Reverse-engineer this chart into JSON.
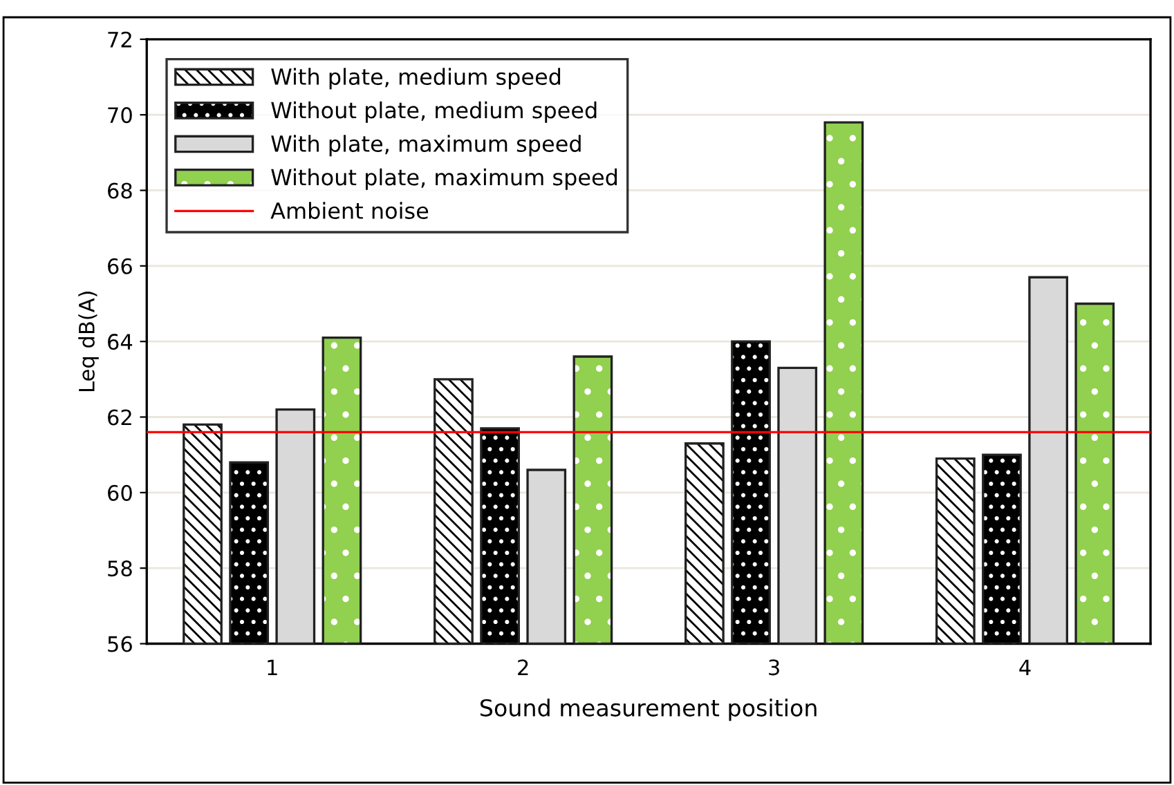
{
  "chart_data": {
    "type": "bar",
    "xlabel": "Sound measurement position",
    "ylabel": "Leq dB(A)",
    "categories": [
      "1",
      "2",
      "3",
      "4"
    ],
    "series": [
      {
        "name": "With plate, medium speed",
        "color": "#ffffff",
        "values": [
          61.8,
          63.0,
          61.3,
          60.9
        ]
      },
      {
        "name": "Without plate, medium speed",
        "color": "#000000",
        "values": [
          60.8,
          61.7,
          64.0,
          61.0
        ]
      },
      {
        "name": "With plate, maximum speed",
        "color": "#d9d9d9",
        "values": [
          62.2,
          60.6,
          63.3,
          65.7
        ]
      },
      {
        "name": "Without plate, maximum speed",
        "color": "#92d050",
        "values": [
          64.1,
          63.6,
          69.8,
          65.0
        ]
      }
    ],
    "ref_lines": [
      {
        "axis": "y",
        "value": 61.6,
        "label": "Ambient noise",
        "color": "#ff0000",
        "line_style": "solid"
      }
    ],
    "ylim": [
      56,
      72
    ],
    "yticks": [
      56,
      58,
      60,
      62,
      64,
      66,
      68,
      70,
      72
    ],
    "grid": "y",
    "legend": "top left"
  }
}
